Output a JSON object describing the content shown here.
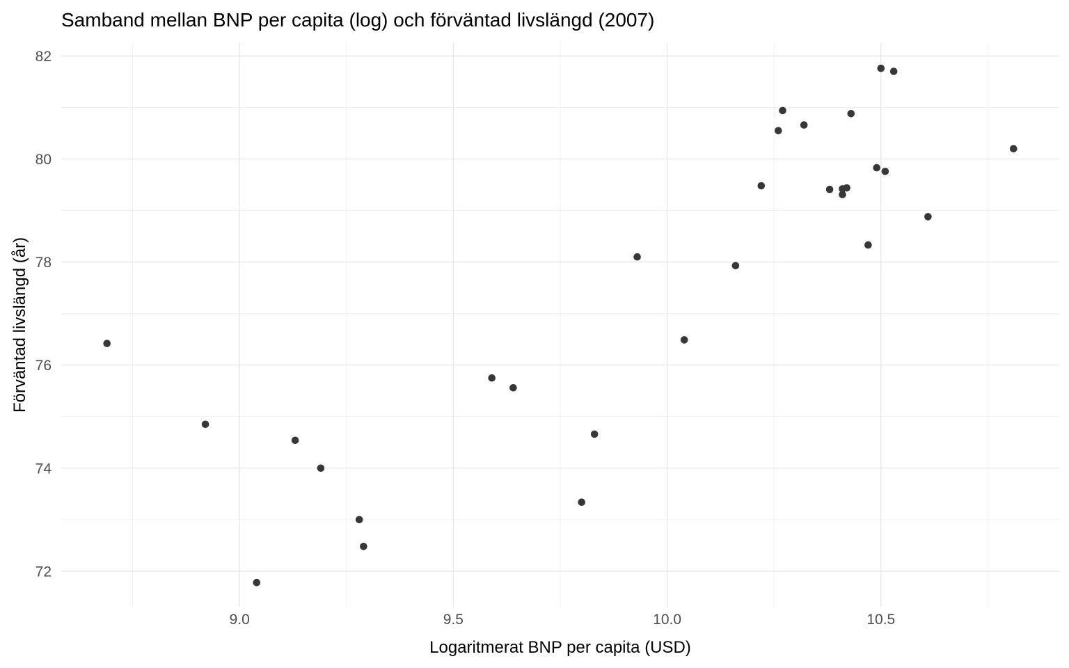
{
  "chart": {
    "title": "Samband mellan BNP per capita (log) och förväntad livslängd (2007)",
    "xlabel": "Logaritmerat BNP per capita (USD)",
    "ylabel": "Förväntad livslängd (år)"
  },
  "chart_data": {
    "type": "scatter",
    "title": "Samband mellan BNP per capita (log) och förväntad livslängd (2007)",
    "xlabel": "Logaritmerat BNP per capita (USD)",
    "ylabel": "Förväntad livslängd (år)",
    "xlim": [
      8.583,
      10.917
    ],
    "ylim": [
      71.303,
      82.255
    ],
    "x_major_ticks": [
      9.0,
      9.5,
      10.0,
      10.5
    ],
    "x_tick_labels": [
      "9.0",
      "9.5",
      "10.0",
      "10.5"
    ],
    "x_minor_ticks": [
      8.75,
      9.25,
      9.75,
      10.25,
      10.75
    ],
    "y_major_ticks": [
      72,
      74,
      76,
      78,
      80,
      82
    ],
    "y_tick_labels": [
      "72",
      "74",
      "76",
      "78",
      "80",
      "82"
    ],
    "y_minor_ticks": [
      73,
      75,
      77,
      79,
      81
    ],
    "grid": true,
    "legend": false,
    "points": [
      [
        8.69,
        76.42
      ],
      [
        8.92,
        74.85
      ],
      [
        9.04,
        71.78
      ],
      [
        9.13,
        74.54
      ],
      [
        9.19,
        74.0
      ],
      [
        9.28,
        73.0
      ],
      [
        9.29,
        72.48
      ],
      [
        9.59,
        75.75
      ],
      [
        9.64,
        75.56
      ],
      [
        9.8,
        73.34
      ],
      [
        9.83,
        74.66
      ],
      [
        9.93,
        78.1
      ],
      [
        10.04,
        76.49
      ],
      [
        10.16,
        77.93
      ],
      [
        10.22,
        79.48
      ],
      [
        10.26,
        80.55
      ],
      [
        10.27,
        80.94
      ],
      [
        10.32,
        80.66
      ],
      [
        10.38,
        79.41
      ],
      [
        10.41,
        79.31
      ],
      [
        10.41,
        79.42
      ],
      [
        10.42,
        79.44
      ],
      [
        10.43,
        80.88
      ],
      [
        10.47,
        78.33
      ],
      [
        10.49,
        79.83
      ],
      [
        10.5,
        81.76
      ],
      [
        10.51,
        79.76
      ],
      [
        10.53,
        81.7
      ],
      [
        10.61,
        78.88
      ],
      [
        10.81,
        80.2
      ]
    ],
    "point_color": "#373737",
    "point_radius": 5.3,
    "grid_major_color": "#e8e8e8",
    "grid_minor_color": "#efefef",
    "tick_label_color": "#4d4d4d",
    "background_color": "#ffffff"
  }
}
